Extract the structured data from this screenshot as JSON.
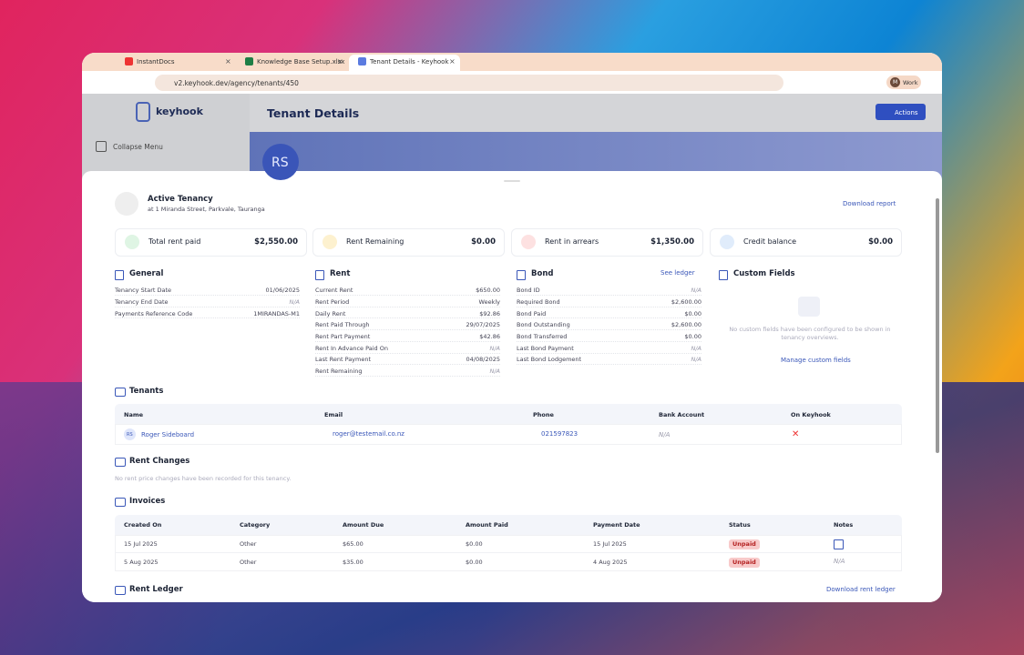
{
  "browser": {
    "tabs": [
      "InstantDocs",
      "Knowledge Base Setup.xlsx",
      "Tenant Details - Keyhook"
    ],
    "url": "v2.keyhook.dev/agency/tenants/450",
    "profile_initial": "M",
    "profile": "Work"
  },
  "app": {
    "logo": "keyhook",
    "page_title": "Tenant Details",
    "actions": "Actions",
    "collapse": "Collapse Menu",
    "avatar": "RS"
  },
  "tenancy": {
    "title": "Active Tenancy",
    "address": "at 1 Miranda Street, Parkvale, Tauranga",
    "download": "Download report"
  },
  "summary": [
    {
      "label": "Total rent paid",
      "value": "$2,550.00"
    },
    {
      "label": "Rent Remaining",
      "value": "$0.00"
    },
    {
      "label": "Rent in arrears",
      "value": "$1,350.00"
    },
    {
      "label": "Credit balance",
      "value": "$0.00"
    }
  ],
  "general": {
    "title": "General",
    "rows": [
      [
        "Tenancy Start Date",
        "01/06/2025"
      ],
      [
        "Tenancy End Date",
        "N/A"
      ],
      [
        "Payments Reference Code",
        "1MIRANDAS-M1"
      ]
    ]
  },
  "rent": {
    "title": "Rent",
    "rows": [
      [
        "Current Rent",
        "$650.00"
      ],
      [
        "Rent Period",
        "Weekly"
      ],
      [
        "Daily Rent",
        "$92.86"
      ],
      [
        "Rent Paid Through",
        "29/07/2025"
      ],
      [
        "Rent Part Payment",
        "$42.86"
      ],
      [
        "Rent In Advance Paid On",
        "N/A"
      ],
      [
        "Last Rent Payment",
        "04/08/2025"
      ],
      [
        "Rent Remaining",
        "N/A"
      ]
    ]
  },
  "bond": {
    "title": "Bond",
    "link": "See ledger",
    "rows": [
      [
        "Bond ID",
        "N/A"
      ],
      [
        "Required Bond",
        "$2,600.00"
      ],
      [
        "Bond Paid",
        "$0.00"
      ],
      [
        "Bond Outstanding",
        "$2,600.00"
      ],
      [
        "Bond Transferred",
        "$0.00"
      ],
      [
        "Last Bond Payment",
        "N/A"
      ],
      [
        "Last Bond Lodgement",
        "N/A"
      ]
    ]
  },
  "custom_fields": {
    "title": "Custom Fields",
    "empty": "No custom fields have been configured to be shown in tenancy overviews.",
    "link": "Manage custom fields"
  },
  "tenants": {
    "title": "Tenants",
    "headers": [
      "Name",
      "Email",
      "Phone",
      "Bank Account",
      "On Keyhook"
    ],
    "rows": [
      {
        "initials": "RS",
        "name": "Roger Sideboard",
        "email": "roger@testemail.co.nz",
        "phone": "021597823",
        "bank": "N/A"
      }
    ]
  },
  "rent_changes": {
    "title": "Rent Changes",
    "empty": "No rent price changes have been recorded for this tenancy."
  },
  "invoices": {
    "title": "Invoices",
    "headers": [
      "Created On",
      "Category",
      "Amount Due",
      "Amount Paid",
      "Payment Date",
      "Status",
      "Notes"
    ],
    "rows": [
      [
        "15 Jul 2025",
        "Other",
        "$65.00",
        "$0.00",
        "15 Jul 2025",
        "Unpaid"
      ],
      [
        "5 Aug 2025",
        "Other",
        "$35.00",
        "$0.00",
        "4 Aug 2025",
        "Unpaid",
        "N/A"
      ]
    ]
  },
  "rent_ledger": {
    "title": "Rent Ledger",
    "download": "Download rent ledger"
  }
}
